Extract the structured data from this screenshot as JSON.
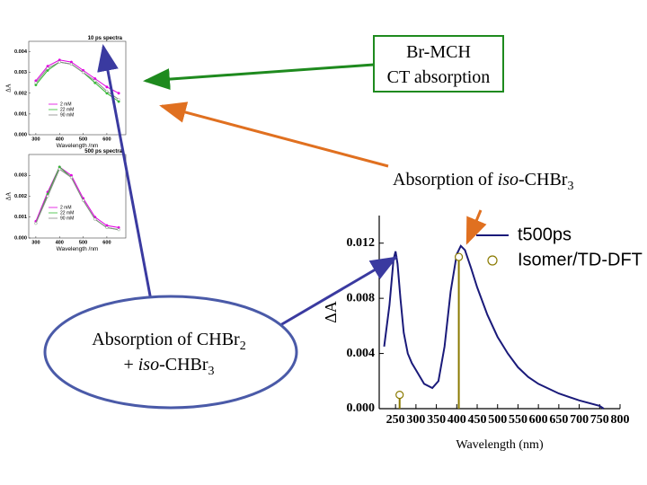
{
  "chart_data": [
    {
      "type": "line",
      "title": "10 ps spectra",
      "xlabel": "Wavelength /nm",
      "ylabel": "ΔA",
      "x": [
        300,
        350,
        400,
        450,
        500,
        550,
        600,
        650
      ],
      "series": [
        {
          "name": "2 mM",
          "color": "#e000e0",
          "values": [
            0.0026,
            0.0033,
            0.0036,
            0.0035,
            0.0031,
            0.0027,
            0.0023,
            0.002
          ]
        },
        {
          "name": "22 mM",
          "color": "#33bb33",
          "values": [
            0.0024,
            0.0031,
            0.0035,
            0.0034,
            0.003,
            0.0025,
            0.002,
            0.0016
          ]
        },
        {
          "name": "90 mM",
          "color": "#888888",
          "values": [
            0.0025,
            0.0032,
            0.0035,
            0.0034,
            0.003,
            0.0026,
            0.0021,
            0.0017
          ]
        }
      ],
      "xlim": [
        270,
        680
      ],
      "xticks": [
        300,
        400,
        500,
        600
      ],
      "ylim": [
        0,
        0.0045
      ],
      "yticks": [
        {
          "value": 0,
          "label": "0.000"
        },
        {
          "value": 0.001,
          "label": "0.001"
        },
        {
          "value": 0.002,
          "label": "0.002"
        },
        {
          "value": 0.003,
          "label": "0.003"
        },
        {
          "value": 0.004,
          "label": "0.004"
        }
      ],
      "legend": "lower left"
    },
    {
      "type": "line",
      "title": "500 ps spectra",
      "xlabel": "Wavelength /nm",
      "ylabel": "ΔA",
      "x": [
        300,
        350,
        400,
        450,
        500,
        550,
        600,
        650
      ],
      "series": [
        {
          "name": "2 mM",
          "color": "#e000e0",
          "values": [
            0.0008,
            0.0022,
            0.0034,
            0.003,
            0.0019,
            0.001,
            0.0006,
            0.0005
          ]
        },
        {
          "name": "22 mM",
          "color": "#33bb33",
          "values": [
            0.0007,
            0.0021,
            0.0034,
            0.0029,
            0.0018,
            0.0009,
            0.0005,
            0.0004
          ]
        },
        {
          "name": "90 mM",
          "color": "#888888",
          "values": [
            0.0007,
            0.002,
            0.0033,
            0.0029,
            0.0018,
            0.0009,
            0.0005,
            0.0004
          ]
        }
      ],
      "xlim": [
        270,
        680
      ],
      "xticks": [
        300,
        400,
        500,
        600
      ],
      "ylim": [
        0,
        0.004
      ],
      "yticks": [
        {
          "value": 0,
          "label": "0.000"
        },
        {
          "value": 0.001,
          "label": "0.001"
        },
        {
          "value": 0.002,
          "label": "0.002"
        },
        {
          "value": 0.003,
          "label": "0.003"
        }
      ],
      "legend": "lower left"
    },
    {
      "type": "line",
      "xlabel": "Wavelength (nm)",
      "ylabel": "ΔA",
      "series": [
        {
          "name": "t500ps",
          "color": "#1a1a7a",
          "x": [
            222,
            235,
            245,
            250,
            255,
            262,
            270,
            280,
            290,
            300,
            320,
            340,
            355,
            370,
            385,
            400,
            410,
            420,
            435,
            450,
            475,
            500,
            525,
            550,
            575,
            600,
            650,
            700,
            750,
            760
          ],
          "values": [
            0.0045,
            0.0075,
            0.0108,
            0.0114,
            0.0105,
            0.008,
            0.0055,
            0.004,
            0.0033,
            0.0028,
            0.0018,
            0.0015,
            0.002,
            0.0045,
            0.0085,
            0.0112,
            0.0118,
            0.0115,
            0.0102,
            0.0088,
            0.0068,
            0.0052,
            0.004,
            0.003,
            0.0023,
            0.0018,
            0.0011,
            0.0006,
            0.0002,
            0.0
          ]
        },
        {
          "name": "Isomer/TD-DFT",
          "color": "#8a7a00",
          "marker": "stem",
          "x": [
            260,
            405
          ],
          "values": [
            0.001,
            0.011
          ]
        }
      ],
      "xlim": [
        210,
        800
      ],
      "xticks": [
        250,
        300,
        350,
        400,
        450,
        500,
        550,
        600,
        650,
        700,
        750,
        800
      ],
      "ylim": [
        0,
        0.014
      ],
      "yticks": [
        {
          "value": 0,
          "label": "0.000"
        },
        {
          "value": 0.004,
          "label": "0.004"
        },
        {
          "value": 0.008,
          "label": "0.008"
        },
        {
          "value": 0.012,
          "label": "0.012"
        }
      ],
      "legend": "upper right"
    }
  ],
  "callouts": [
    [
      "Br-MCH",
      "CT absorption"
    ],
    [
      "Absorption of ",
      "iso",
      "-CHBr",
      "3"
    ],
    [
      "Absorption of CHBr",
      "2",
      "+ ",
      "iso",
      "-CHBr",
      "3"
    ]
  ]
}
